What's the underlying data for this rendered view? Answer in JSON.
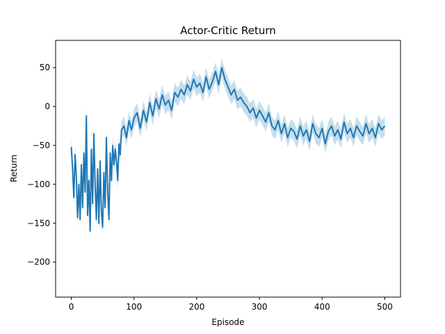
{
  "chart_data": {
    "type": "line",
    "title": "Actor-Critic Return",
    "xlabel": "Episode",
    "ylabel": "Return",
    "xlim": [
      -25,
      525
    ],
    "ylim": [
      -245,
      85
    ],
    "xticks": [
      0,
      100,
      200,
      300,
      400,
      500
    ],
    "yticks": [
      -200,
      -150,
      -100,
      -50,
      0,
      50
    ],
    "grid": false,
    "legend": "none",
    "colors": {
      "line": "#1f77b4",
      "band": "#1f77b4"
    },
    "series": [
      {
        "band_halfwidth": 12,
        "x": [
          0,
          2,
          4,
          6,
          8,
          10,
          12,
          14,
          16,
          18,
          20,
          22,
          24,
          26,
          28,
          30,
          32,
          34,
          36,
          38,
          40,
          42,
          44,
          46,
          48,
          50,
          52,
          54,
          56,
          58,
          60,
          62,
          64,
          66,
          68,
          70,
          72,
          74,
          76,
          78,
          80,
          84,
          88,
          92,
          96,
          100,
          105,
          110,
          115,
          120,
          125,
          130,
          135,
          140,
          145,
          150,
          155,
          160,
          165,
          170,
          175,
          180,
          185,
          190,
          195,
          200,
          205,
          210,
          215,
          220,
          225,
          230,
          235,
          240,
          245,
          250,
          255,
          260,
          265,
          270,
          275,
          280,
          285,
          290,
          295,
          300,
          305,
          310,
          315,
          320,
          325,
          330,
          335,
          340,
          345,
          350,
          355,
          360,
          365,
          370,
          375,
          380,
          385,
          390,
          395,
          400,
          405,
          410,
          415,
          420,
          425,
          430,
          435,
          440,
          445,
          450,
          455,
          460,
          465,
          470,
          475,
          480,
          485,
          490,
          495,
          500
        ],
        "values": [
          -52,
          -78,
          -117,
          -62,
          -90,
          -143,
          -100,
          -145,
          -75,
          -130,
          -60,
          -110,
          -12,
          -140,
          -95,
          -160,
          -55,
          -125,
          -35,
          -100,
          -145,
          -80,
          -150,
          -70,
          -135,
          -155,
          -85,
          -130,
          -40,
          -110,
          -145,
          -60,
          -95,
          -50,
          -75,
          -55,
          -70,
          -95,
          -48,
          -62,
          -30,
          -25,
          -40,
          -18,
          -30,
          -15,
          -8,
          -28,
          -5,
          -20,
          5,
          -12,
          10,
          -3,
          15,
          2,
          8,
          -5,
          18,
          12,
          22,
          15,
          28,
          20,
          35,
          25,
          30,
          18,
          38,
          22,
          32,
          45,
          28,
          50,
          35,
          25,
          15,
          22,
          8,
          12,
          5,
          0,
          -8,
          -2,
          -15,
          -5,
          -12,
          -20,
          -8,
          -25,
          -30,
          -18,
          -35,
          -22,
          -40,
          -28,
          -32,
          -42,
          -25,
          -38,
          -30,
          -45,
          -22,
          -35,
          -40,
          -28,
          -48,
          -32,
          -25,
          -38,
          -30,
          -42,
          -20,
          -35,
          -28,
          -40,
          -25,
          -32,
          -38,
          -22,
          -35,
          -28,
          -40,
          -22,
          -30,
          -25
        ]
      }
    ]
  }
}
